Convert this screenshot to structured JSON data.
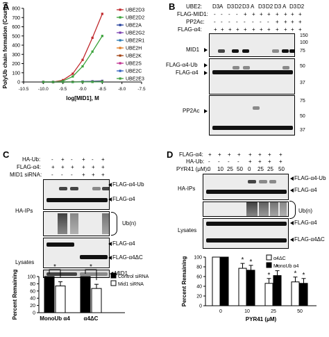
{
  "panels": {
    "A": "A",
    "B": "B",
    "C": "C",
    "D": "D"
  },
  "panelA": {
    "ylabel": "PolyUb chain formation (Counts)",
    "xlabel": "log[MID1], M",
    "xticks": [
      "-10.5",
      "-10.0",
      "-9.5",
      "-9.0",
      "-8.5",
      "-8.0",
      "-7.5"
    ],
    "yticks": [
      "0",
      "100",
      "200",
      "300",
      "400",
      "500",
      "600",
      "700",
      "800"
    ],
    "legend": [
      "UBE2D3",
      "UBE2D2",
      "UBE2A",
      "UBE2G2",
      "UBE2R1",
      "UBE2H",
      "UBE2K",
      "UBE2S",
      "UBE2C",
      "UBE2E3"
    ]
  },
  "chart_data": [
    {
      "type": "line",
      "xlabel": "log[MID1], M",
      "ylabel": "PolyUb chain formation (Counts)",
      "x": [
        -10.0,
        -9.75,
        -9.5,
        -9.25,
        -9.0,
        -8.75,
        -8.5
      ],
      "xlim": [
        -10.5,
        -7.5
      ],
      "ylim": [
        0,
        800
      ],
      "series": [
        {
          "name": "UBE2D3",
          "color": "#c0282c",
          "values": [
            0,
            0,
            20,
            90,
            240,
            480,
            740
          ]
        },
        {
          "name": "UBE2D2",
          "color": "#3aa23a",
          "values": [
            0,
            0,
            10,
            60,
            170,
            330,
            500
          ]
        },
        {
          "name": "UBE2A",
          "color": "#1f3c9a",
          "values": [
            0,
            0,
            0,
            2,
            5,
            8,
            12
          ]
        },
        {
          "name": "UBE2G2",
          "color": "#7a3fb0",
          "values": [
            0,
            0,
            0,
            2,
            3,
            5,
            8
          ]
        },
        {
          "name": "UBE2R1",
          "color": "#2a7ab0",
          "values": [
            0,
            0,
            0,
            1,
            3,
            4,
            6
          ]
        },
        {
          "name": "UBE2H",
          "color": "#e07a20",
          "values": [
            0,
            0,
            0,
            1,
            2,
            4,
            5
          ]
        },
        {
          "name": "UBE2K",
          "color": "#a04010",
          "values": [
            0,
            0,
            0,
            1,
            2,
            3,
            4
          ]
        },
        {
          "name": "UBE2S",
          "color": "#c03090",
          "values": [
            0,
            0,
            0,
            1,
            1,
            2,
            3
          ]
        },
        {
          "name": "UBE2C",
          "color": "#3060c0",
          "values": [
            0,
            0,
            0,
            0,
            1,
            2,
            3
          ]
        },
        {
          "name": "UBE2E3",
          "color": "#40a040",
          "values": [
            0,
            0,
            0,
            0,
            1,
            1,
            2
          ]
        }
      ]
    },
    {
      "type": "bar",
      "ylabel": "Percent Remaining",
      "categories": [
        "MonoUb α4",
        "α4ΔC"
      ],
      "ylim": [
        0,
        100
      ],
      "yticks": [
        "0",
        "20",
        "40",
        "60",
        "80",
        "100"
      ],
      "series": [
        {
          "name": "Control siRNA",
          "values": [
            100,
            100
          ]
        },
        {
          "name": "Mid1 siRNA",
          "values": [
            74,
            67
          ]
        }
      ]
    },
    {
      "type": "bar",
      "ylabel": "Percent Remaining",
      "xlabel": "PYR41 (μM)",
      "categories": [
        "0",
        "10",
        "25",
        "50"
      ],
      "ylim": [
        0,
        100
      ],
      "yticks": [
        "0",
        "20",
        "40",
        "60",
        "80",
        "100"
      ],
      "series": [
        {
          "name": "α4ΔC",
          "values": [
            100,
            77,
            46,
            49
          ]
        },
        {
          "name": "MonoUb α4",
          "values": [
            100,
            73,
            62,
            46
          ]
        }
      ]
    }
  ],
  "panelB": {
    "ube2_label": "UBE2:",
    "ube2": [
      "D3",
      "A",
      "D3",
      "D2",
      "D3",
      "A",
      "D3",
      "D2",
      "D3",
      "A",
      "D3",
      "D2"
    ],
    "rows": [
      {
        "label": "FLAG-MID1:"
      },
      {
        "label": "PP2Ac:"
      },
      {
        "label": "FLAG-α4:"
      }
    ],
    "blot_labels": [
      "MID1",
      "FLAG-α4-Ub",
      "FLAG-α4",
      "PP2Ac"
    ],
    "mw": [
      "150",
      "100",
      "75",
      "50",
      "37",
      "75",
      "50",
      "37"
    ]
  },
  "panelC": {
    "rows": [
      "HA-Ub:",
      "FLAG-α4:",
      "MID1 siRNA:"
    ],
    "signs": [
      [
        "-",
        "+",
        "-",
        "+",
        "-",
        "+"
      ],
      [
        "+",
        "+",
        "+",
        "+",
        "+",
        "+"
      ],
      [
        "-",
        "-",
        "-",
        "+",
        "+",
        "+"
      ]
    ],
    "group_labels": [
      "HA-IPs",
      "Lysates"
    ],
    "blot_labels": [
      "FLAG-α4-Ub",
      "FLAG-α4",
      "Ub(n)",
      "FLAG-α4",
      "FLAG-α4ΔC",
      "MID1"
    ],
    "ub_n": "(n)",
    "legend": [
      "Control siRNA",
      "Mid1 siRNA"
    ],
    "ylabel": "Percent Remaining",
    "categories": [
      "MonoUb α4",
      "α4ΔC"
    ],
    "star": "*"
  },
  "panelD": {
    "rows": [
      "FLAG-α4:",
      "HA-Ub:",
      "PYR41 (μM):"
    ],
    "signs": [
      [
        "+",
        "+",
        "+",
        "+",
        "+",
        "+",
        "+",
        "+"
      ],
      [
        "-",
        "-",
        "-",
        "-",
        "+",
        "+",
        "+",
        "+"
      ]
    ],
    "pyr": [
      "0",
      "10",
      "25",
      "50",
      "0",
      "25",
      "25",
      "50"
    ],
    "group_labels": [
      "HA-IPs",
      "Lysates"
    ],
    "blot_labels": [
      "FLAG-α4-Ub",
      "FLAG-α4",
      "Ub(n)",
      "FLAG-α4",
      "FLAG-α4ΔC"
    ],
    "legend": [
      "α4ΔC",
      "MonoUb α4"
    ],
    "ylabel": "Percent Remaining",
    "xlabel": "PYR41 (μM)",
    "categories": [
      "0",
      "10",
      "25",
      "50"
    ],
    "star": "*"
  }
}
